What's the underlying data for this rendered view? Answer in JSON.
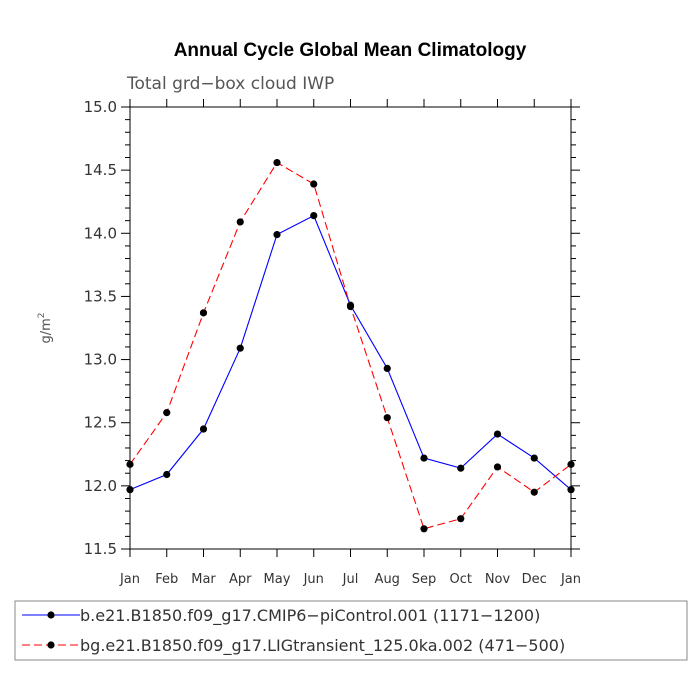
{
  "chart_data": {
    "type": "line",
    "title": "Annual Cycle Global Mean Climatology",
    "subtitle": "Total grd−box cloud IWP",
    "xlabel": "",
    "ylabel": "g/m",
    "ylabel_superscript": "2",
    "categories": [
      "Jan",
      "Feb",
      "Mar",
      "Apr",
      "May",
      "Jun",
      "Jul",
      "Aug",
      "Sep",
      "Oct",
      "Nov",
      "Dec",
      "Jan"
    ],
    "ylim": [
      11.5,
      15.0
    ],
    "yticks": [
      "11.5",
      "12.0",
      "12.5",
      "13.0",
      "13.5",
      "14.0",
      "14.5",
      "15.0"
    ],
    "grid": false,
    "legend_position": "bottom",
    "series": [
      {
        "name": "b.e21.B1850.f09_g17.CMIP6−piControl.001 (1171−1200)",
        "color": "#0000ff",
        "dash": "solid",
        "values": [
          11.97,
          12.09,
          12.45,
          13.09,
          13.99,
          14.14,
          13.43,
          12.93,
          12.22,
          12.14,
          12.41,
          12.22,
          11.97
        ]
      },
      {
        "name": "bg.e21.B1850.f09_g17.LIGtransient_125.0ka.002 (471−500)",
        "color": "#ff0000",
        "dash": "dashed",
        "values": [
          12.17,
          12.58,
          13.37,
          14.09,
          14.56,
          14.39,
          13.42,
          12.54,
          11.66,
          11.74,
          12.15,
          11.95,
          12.17
        ]
      }
    ]
  }
}
